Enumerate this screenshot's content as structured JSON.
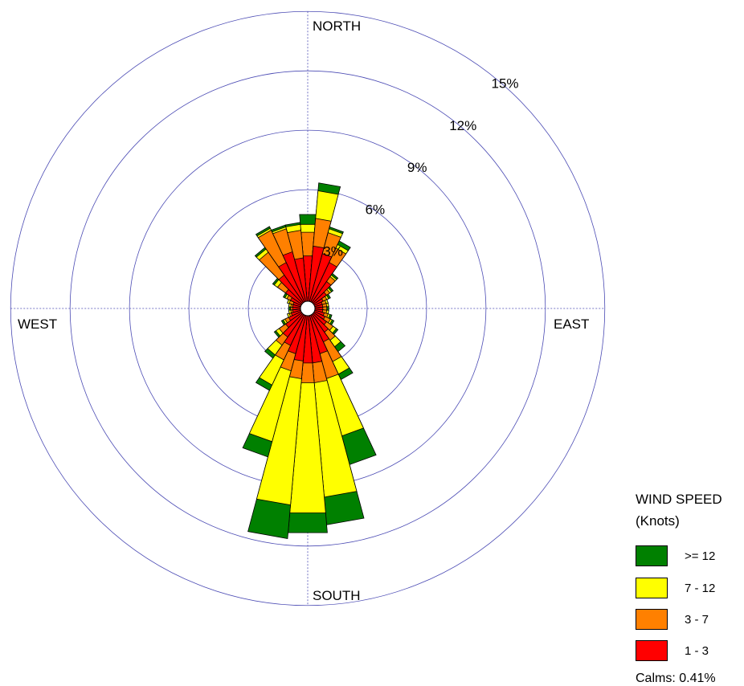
{
  "chart_data": {
    "type": "wind_rose",
    "radial_unit": "%",
    "radial_ticks": [
      {
        "value": 3,
        "label": "3%"
      },
      {
        "value": 6,
        "label": "6%"
      },
      {
        "value": 9,
        "label": "9%"
      },
      {
        "value": 12,
        "label": "12%"
      },
      {
        "value": 15,
        "label": "15%"
      }
    ],
    "compass_labels": {
      "north": "NORTH",
      "east": "EAST",
      "south": "SOUTH",
      "west": "WEST"
    },
    "grid": true,
    "legend": {
      "position": "bottom-right",
      "title_line1": "WIND SPEED",
      "title_line2": "(Knots)",
      "items": [
        {
          "label": ">= 12",
          "color": "#008000"
        },
        {
          "label": "7 - 12",
          "color": "#ffff00"
        },
        {
          "label": "3 - 7",
          "color": "#ff8000"
        },
        {
          "label": "1 - 3",
          "color": "#ff0000"
        }
      ],
      "calms_text": "Calms: 0.41%"
    },
    "speed_bins": [
      "1 - 3",
      "3 - 7",
      "7 - 12",
      ">= 12"
    ],
    "directions_deg": [
      0,
      10,
      20,
      30,
      40,
      50,
      60,
      70,
      80,
      90,
      100,
      110,
      120,
      130,
      140,
      150,
      160,
      170,
      180,
      190,
      200,
      210,
      220,
      230,
      240,
      250,
      260,
      270,
      280,
      290,
      300,
      310,
      320,
      330,
      340,
      350
    ],
    "cumulative_percent": [
      [
        2.3,
        3.5,
        3.9,
        4.4
      ],
      [
        2.8,
        4.2,
        5.6,
        6.0
      ],
      [
        2.5,
        3.6,
        3.8,
        3.9
      ],
      [
        2.2,
        3.0,
        3.2,
        3.4
      ],
      [
        1.3,
        1.6,
        1.7,
        1.8
      ],
      [
        0.8,
        1.0,
        1.1,
        1.2
      ],
      [
        0.5,
        0.7,
        0.8,
        0.9
      ],
      [
        0.4,
        0.6,
        0.7,
        0.7
      ],
      [
        0.4,
        0.6,
        0.7,
        0.7
      ],
      [
        0.4,
        0.6,
        0.6,
        0.7
      ],
      [
        0.4,
        0.6,
        0.7,
        0.7
      ],
      [
        0.5,
        0.7,
        0.8,
        0.9
      ],
      [
        0.6,
        0.9,
        1.0,
        1.1
      ],
      [
        0.8,
        1.2,
        1.4,
        1.5
      ],
      [
        1.1,
        1.6,
        2.0,
        2.3
      ],
      [
        1.5,
        2.6,
        3.3,
        3.6
      ],
      [
        2.0,
        3.3,
        6.3,
        7.8
      ],
      [
        2.4,
        3.4,
        9.2,
        10.6
      ],
      [
        2.4,
        3.4,
        10.0,
        11.0
      ],
      [
        2.3,
        3.2,
        9.6,
        11.3
      ],
      [
        2.0,
        2.9,
        6.6,
        7.4
      ],
      [
        1.7,
        2.5,
        3.9,
        4.2
      ],
      [
        1.4,
        1.9,
        2.5,
        2.7
      ],
      [
        1.0,
        1.4,
        1.6,
        1.7
      ],
      [
        0.7,
        0.9,
        1.0,
        1.1
      ],
      [
        0.5,
        0.6,
        0.7,
        0.7
      ],
      [
        0.4,
        0.5,
        0.6,
        0.6
      ],
      [
        0.4,
        0.5,
        0.5,
        0.6
      ],
      [
        0.4,
        0.5,
        0.6,
        0.6
      ],
      [
        0.4,
        0.6,
        0.7,
        0.7
      ],
      [
        0.6,
        0.8,
        0.9,
        1.0
      ],
      [
        1.0,
        1.5,
        1.7,
        1.8
      ],
      [
        1.7,
        3.1,
        3.3,
        3.4
      ],
      [
        2.2,
        4.0,
        4.1,
        4.2
      ],
      [
        2.6,
        3.8,
        3.9,
        4.0
      ],
      [
        2.2,
        3.6,
        3.9,
        4.0
      ]
    ]
  }
}
